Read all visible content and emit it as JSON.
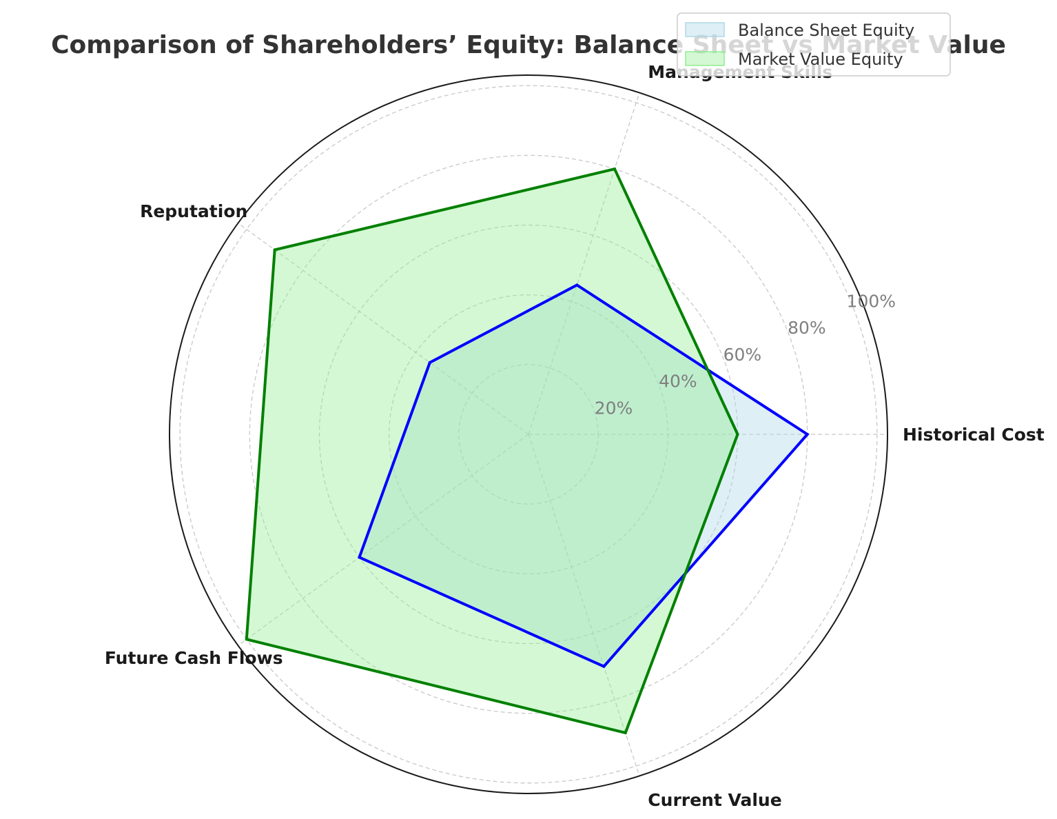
{
  "chart_data": {
    "type": "radar",
    "title": "Comparison of Shareholders’ Equity: Balance Sheet vs Market Value",
    "categories": [
      "Historical Cost",
      "Current Value",
      "Future Cash Flows",
      "Reputation",
      "Management Skills"
    ],
    "category_order_clockwise_from_right": [
      "Historical Cost",
      "Future Cash Flows",
      "Management Skills",
      "Reputation",
      "Current Value"
    ],
    "series": [
      {
        "name": "Balance Sheet Equity",
        "line_color": "#0000ff",
        "fill_color": "#add8e6",
        "values": [
          80,
          70,
          60,
          35,
          45
        ]
      },
      {
        "name": "Market Value Equity",
        "line_color": "#008000",
        "fill_color": "#90ee90",
        "values": [
          60,
          90,
          100,
          90,
          80
        ]
      }
    ],
    "r_ticks": [
      20,
      40,
      60,
      80,
      100
    ],
    "r_tick_labels": [
      "20%",
      "40%",
      "60%",
      "80%",
      "100%"
    ],
    "r_max": 103,
    "grid": true,
    "legend_position": "top-right"
  }
}
